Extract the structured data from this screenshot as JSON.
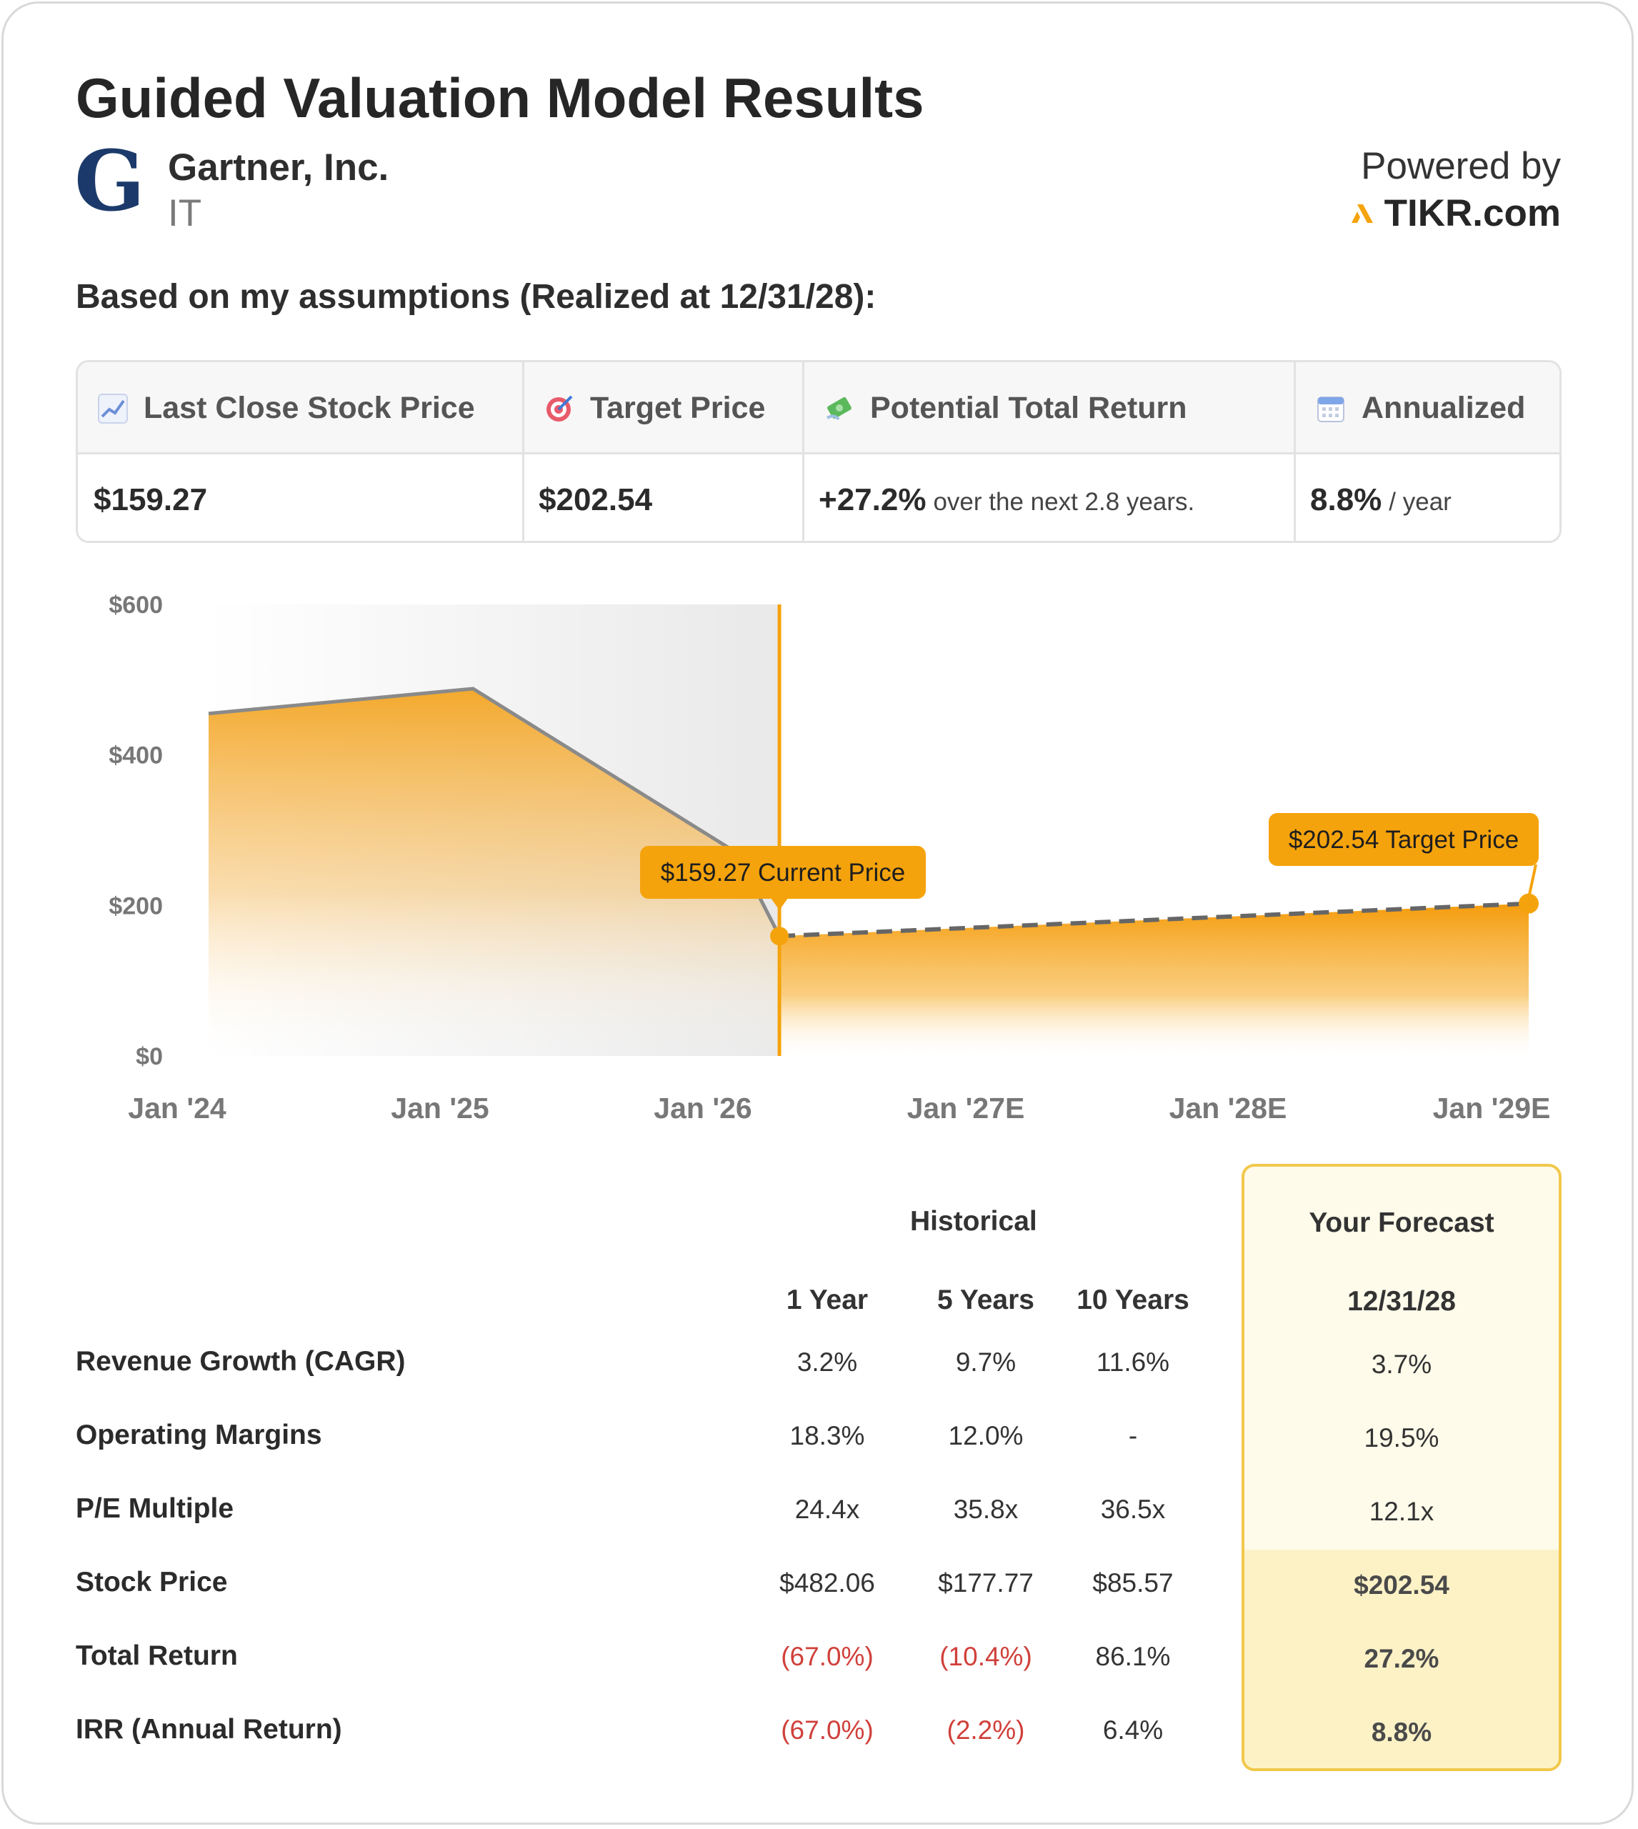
{
  "header": {
    "title": "Guided Valuation Model Results",
    "logo_letter": "G",
    "company_name": "Gartner, Inc.",
    "ticker": "IT",
    "powered_by": "Powered by",
    "brand": "TIKR.com"
  },
  "subhead": "Based on my assumptions (Realized at 12/31/28):",
  "metrics": [
    {
      "label": "Last Close Stock Price",
      "icon": "chart-icon",
      "value": "$159.27",
      "note": ""
    },
    {
      "label": "Target Price",
      "icon": "target-icon",
      "value": "$202.54",
      "note": ""
    },
    {
      "label": "Potential Total Return",
      "icon": "money-icon",
      "value": "+27.2%",
      "note": "over the next 2.8 years."
    },
    {
      "label": "Annualized",
      "icon": "calendar-icon",
      "value": "8.8%",
      "note": "/ year"
    }
  ],
  "chart_data": {
    "type": "area",
    "y_ticks": [
      "$600",
      "$400",
      "$200",
      "$0"
    ],
    "ylim": [
      0,
      600
    ],
    "x_ticks": [
      "Jan '24",
      "Jan '25",
      "Jan '26",
      "Jan '27E",
      "Jan '28E",
      "Jan '29E"
    ],
    "historical": [
      {
        "x": "2024-01",
        "y": 455
      },
      {
        "x": "2025-01",
        "y": 488
      },
      {
        "x": "2026-01",
        "y": 270
      },
      {
        "x": "2026-03",
        "y": 159.27
      }
    ],
    "forecast": [
      {
        "x": "2026-03",
        "y": 159.27
      },
      {
        "x": "2029-01",
        "y": 202.54
      }
    ],
    "annotations": {
      "current": "$159.27 Current Price",
      "target": "$202.54 Target Price"
    },
    "colors": {
      "accent": "#f5a30c",
      "line": "#8a8a8a",
      "dash": "#666666"
    }
  },
  "table": {
    "historical_header": "Historical",
    "forecast_header": "Your Forecast",
    "columns": [
      "1 Year",
      "5 Years",
      "10 Years"
    ],
    "forecast_column": "12/31/28",
    "rows": [
      {
        "label": "Revenue Growth (CAGR)",
        "values": [
          "3.2%",
          "9.7%",
          "11.6%"
        ],
        "forecast": "3.7%"
      },
      {
        "label": "Operating Margins",
        "values": [
          "18.3%",
          "12.0%",
          "-"
        ],
        "forecast": "19.5%"
      },
      {
        "label": "P/E Multiple",
        "values": [
          "24.4x",
          "35.8x",
          "36.5x"
        ],
        "forecast": "12.1x"
      },
      {
        "label": "Stock Price",
        "values": [
          "$482.06",
          "$177.77",
          "$85.57"
        ],
        "forecast": "$202.54"
      },
      {
        "label": "Total Return",
        "values": [
          "(67.0%)",
          "(10.4%)",
          "86.1%"
        ],
        "forecast": "27.2%"
      },
      {
        "label": "IRR (Annual Return)",
        "values": [
          "(67.0%)",
          "(2.2%)",
          "6.4%"
        ],
        "forecast": "8.8%"
      }
    ]
  }
}
